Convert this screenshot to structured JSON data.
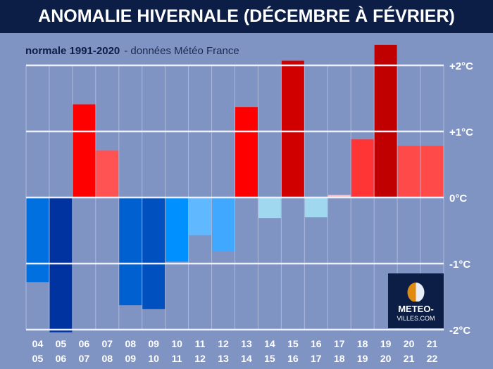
{
  "header": {
    "title": "ANOMALIE HIVERNALE (DÉCEMBRE À FÉVRIER)"
  },
  "subtitle": {
    "normal": "normale 1991-2020",
    "source": "- données Météo France"
  },
  "logo": {
    "line1": "METEO-",
    "line2": "VILLES.COM"
  },
  "chart_data": {
    "type": "bar",
    "title": "ANOMALIE HIVERNALE (DÉCEMBRE À FÉVRIER)",
    "subtitle": "normale 1991-2020 - données Météo France",
    "categories": [
      [
        "04",
        "05"
      ],
      [
        "05",
        "06"
      ],
      [
        "06",
        "07"
      ],
      [
        "07",
        "08"
      ],
      [
        "08",
        "09"
      ],
      [
        "09",
        "10"
      ],
      [
        "10",
        "11"
      ],
      [
        "11",
        "12"
      ],
      [
        "12",
        "13"
      ],
      [
        "13",
        "14"
      ],
      [
        "14",
        "15"
      ],
      [
        "15",
        "16"
      ],
      [
        "16",
        "17"
      ],
      [
        "17",
        "18"
      ],
      [
        "18",
        "19"
      ],
      [
        "19",
        "20"
      ],
      [
        "20",
        "21"
      ],
      [
        "21",
        "22"
      ]
    ],
    "values": [
      -1.28,
      -2.04,
      1.41,
      0.71,
      -1.63,
      -1.69,
      -0.97,
      -0.57,
      -0.81,
      1.37,
      -0.31,
      2.07,
      -0.3,
      0.04,
      0.88,
      2.31,
      0.78,
      0.78
    ],
    "colors": [
      "#0070e0",
      "#0033a0",
      "#ff0000",
      "#ff5252",
      "#0060d0",
      "#0050c0",
      "#0090ff",
      "#60b8ff",
      "#40a8ff",
      "#ff0000",
      "#a0d8f0",
      "#d00000",
      "#a0d8f0",
      "#ffc0c8",
      "#ff3434",
      "#c00000",
      "#ff4a4a",
      "#ff4a4a"
    ],
    "yticks": [
      {
        "v": 2,
        "label": "+2°C"
      },
      {
        "v": 1,
        "label": "+1°C"
      },
      {
        "v": 0,
        "label": "0°C"
      },
      {
        "v": -1,
        "label": "-1°C"
      },
      {
        "v": -2,
        "label": "-2°C"
      }
    ],
    "ylim": [
      -2,
      2.3
    ],
    "grid": true
  }
}
